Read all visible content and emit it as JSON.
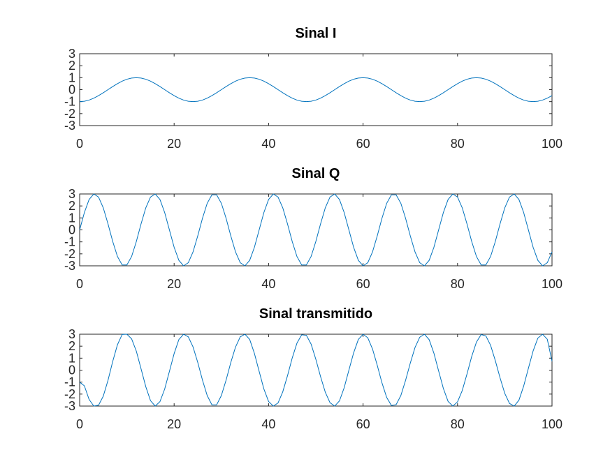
{
  "chart_data": [
    {
      "type": "line",
      "title": "Sinal I",
      "xlim": [
        0,
        100
      ],
      "ylim": [
        -3,
        3
      ],
      "xticks": [
        "0",
        "20",
        "40",
        "60",
        "80",
        "100"
      ],
      "yticks": [
        "3",
        "2",
        "1",
        "0",
        "-1",
        "-2",
        "-3"
      ],
      "x": [
        0,
        1,
        2,
        3,
        4,
        5,
        6,
        7,
        8,
        9,
        10,
        11,
        12,
        13,
        14,
        15,
        16,
        17,
        18,
        19,
        20,
        21,
        22,
        23,
        24,
        25,
        26,
        27,
        28,
        29,
        30,
        31,
        32,
        33,
        34,
        35,
        36,
        37,
        38,
        39,
        40,
        41,
        42,
        43,
        44,
        45,
        46,
        47,
        48,
        49,
        50,
        51,
        52,
        53,
        54,
        55,
        56,
        57,
        58,
        59,
        60,
        61,
        62,
        63,
        64,
        65,
        66,
        67,
        68,
        69,
        70,
        71,
        72,
        73,
        74,
        75,
        76,
        77,
        78,
        79,
        80,
        81,
        82,
        83,
        84,
        85,
        86,
        87,
        88,
        89,
        90,
        91,
        92,
        93,
        94,
        95,
        96,
        97,
        98,
        99,
        100
      ],
      "series": [
        {
          "values": [
            -1,
            -0.97,
            -0.87,
            -0.71,
            -0.5,
            -0.26,
            0,
            0.26,
            0.5,
            0.71,
            0.87,
            0.97,
            1,
            0.97,
            0.87,
            0.71,
            0.5,
            0.26,
            0,
            -0.26,
            -0.5,
            -0.71,
            -0.87,
            -0.97,
            -1,
            -0.97,
            -0.87,
            -0.71,
            -0.5,
            -0.26,
            0,
            0.26,
            0.5,
            0.71,
            0.87,
            0.97,
            1,
            0.97,
            0.87,
            0.71,
            0.5,
            0.26,
            0,
            -0.26,
            -0.5,
            -0.71,
            -0.87,
            -0.97,
            -1,
            -0.97,
            -0.87,
            -0.71,
            -0.5,
            -0.26,
            0,
            0.26,
            0.5,
            0.71,
            0.87,
            0.97,
            1,
            0.97,
            0.87,
            0.71,
            0.5,
            0.26,
            0,
            -0.26,
            -0.5,
            -0.71,
            -0.87,
            -0.97,
            -1,
            -0.97,
            -0.87,
            -0.71,
            -0.5,
            -0.26,
            0,
            0.26,
            0.5,
            0.71,
            0.87,
            0.97,
            1,
            0.97,
            0.87,
            0.71,
            0.5,
            0.26,
            0,
            -0.26,
            -0.5,
            -0.71,
            -0.87,
            -0.97,
            -1,
            -0.97,
            -0.87,
            -0.71,
            -0.5
          ],
          "color": "#0072bd"
        }
      ]
    },
    {
      "type": "line",
      "title": "Sinal Q",
      "xlim": [
        0,
        100
      ],
      "ylim": [
        -3,
        3
      ],
      "xticks": [
        "0",
        "20",
        "40",
        "60",
        "80",
        "100"
      ],
      "yticks": [
        "3",
        "2",
        "1",
        "0",
        "-1",
        "-2",
        "-3"
      ],
      "x": [
        0,
        1,
        2,
        3,
        4,
        5,
        6,
        7,
        8,
        9,
        10,
        11,
        12,
        13,
        14,
        15,
        16,
        17,
        18,
        19,
        20,
        21,
        22,
        23,
        24,
        25,
        26,
        27,
        28,
        29,
        30,
        31,
        32,
        33,
        34,
        35,
        36,
        37,
        38,
        39,
        40,
        41,
        42,
        43,
        44,
        45,
        46,
        47,
        48,
        49,
        50,
        51,
        52,
        53,
        54,
        55,
        56,
        57,
        58,
        59,
        60,
        61,
        62,
        63,
        64,
        65,
        66,
        67,
        68,
        69,
        70,
        71,
        72,
        73,
        74,
        75,
        76,
        77,
        78,
        79,
        80,
        81,
        82,
        83,
        84,
        85,
        86,
        87,
        88,
        89,
        90,
        91,
        92,
        93,
        94,
        95,
        96,
        97,
        98,
        99,
        100
      ],
      "series": [
        {
          "values": [
            0,
            1.45,
            2.54,
            3,
            2.74,
            1.84,
            0.5,
            -0.97,
            -2.22,
            -2.93,
            -2.93,
            -2.22,
            -0.97,
            0.5,
            1.84,
            2.74,
            3,
            2.54,
            1.45,
            0,
            -1.45,
            -2.54,
            -3,
            -2.74,
            -1.84,
            -0.5,
            0.97,
            2.22,
            2.93,
            2.93,
            2.22,
            0.97,
            -0.5,
            -1.84,
            -2.74,
            -3,
            -2.54,
            -1.45,
            0,
            1.45,
            2.54,
            3,
            2.74,
            1.84,
            0.5,
            -0.97,
            -2.22,
            -2.93,
            -2.93,
            -2.22,
            -0.97,
            0.5,
            1.84,
            2.74,
            3,
            2.54,
            1.45,
            0,
            -1.45,
            -2.54,
            -3,
            -2.74,
            -1.84,
            -0.5,
            0.97,
            2.22,
            2.93,
            2.93,
            2.22,
            0.97,
            -0.5,
            -1.84,
            -2.74,
            -3,
            -2.54,
            -1.45,
            0,
            1.45,
            2.54,
            3,
            2.74,
            1.84,
            0.5,
            -0.97,
            -2.22,
            -2.93,
            -2.93,
            -2.22,
            -0.97,
            0.5,
            1.84,
            2.74,
            3,
            2.54,
            1.45,
            0,
            -1.45,
            -2.54,
            -3,
            -2.74,
            -1.84
          ],
          "color": "#0072bd"
        }
      ]
    },
    {
      "type": "line",
      "title": "Sinal transmitido",
      "xlim": [
        0,
        100
      ],
      "ylim": [
        -3,
        3
      ],
      "xticks": [
        "0",
        "20",
        "40",
        "60",
        "80",
        "100"
      ],
      "yticks": [
        "3",
        "2",
        "1",
        "0",
        "-1",
        "-2",
        "-3"
      ],
      "x": [
        0,
        1,
        2,
        3,
        4,
        5,
        6,
        7,
        8,
        9,
        10,
        11,
        12,
        13,
        14,
        15,
        16,
        17,
        18,
        19,
        20,
        21,
        22,
        23,
        24,
        25,
        26,
        27,
        28,
        29,
        30,
        31,
        32,
        33,
        34,
        35,
        36,
        37,
        38,
        39,
        40,
        41,
        42,
        43,
        44,
        45,
        46,
        47,
        48,
        49,
        50,
        51,
        52,
        53,
        54,
        55,
        56,
        57,
        58,
        59,
        60,
        61,
        62,
        63,
        64,
        65,
        66,
        67,
        68,
        69,
        70,
        71,
        72,
        73,
        74,
        75,
        76,
        77,
        78,
        79,
        80,
        81,
        82,
        83,
        84,
        85,
        86,
        87,
        88,
        89,
        90,
        91,
        92,
        93,
        94,
        95,
        96,
        97,
        98,
        99,
        100
      ],
      "series": [
        {
          "values": [
            -1,
            -1.31,
            -2.45,
            -3,
            -2.93,
            -2.17,
            -0.85,
            0.73,
            2.12,
            2.98,
            3,
            2.61,
            1.58,
            0.11,
            -1.38,
            -2.55,
            -3,
            -2.63,
            -1.58,
            -0.11,
            1.38,
            2.55,
            3,
            2.78,
            1.94,
            0.65,
            -0.83,
            -2.12,
            -2.9,
            -2.9,
            -2.12,
            -0.84,
            0.64,
            1.93,
            2.78,
            3,
            2.56,
            1.39,
            -0.1,
            -1.57,
            -2.62,
            -3,
            -2.74,
            -1.81,
            -0.47,
            1.01,
            2.25,
            2.95,
            2.91,
            2.17,
            0.91,
            -0.54,
            -1.84,
            -2.72,
            -3,
            -2.57,
            -1.47,
            0,
            1.44,
            2.56,
            3,
            2.7,
            1.77,
            0.41,
            -1.06,
            -2.28,
            -2.95,
            -2.88,
            -2.12,
            -0.85,
            0.59,
            1.89,
            2.75,
            3,
            2.54,
            1.41,
            -0.07,
            -1.53,
            -2.61,
            -3,
            -2.65,
            -1.7,
            -0.33,
            1.14,
            2.34,
            2.97,
            2.86,
            2.07,
            0.79,
            -0.64,
            -1.94,
            -2.78,
            -3,
            -2.51,
            -1.33,
            0.15,
            1.6,
            2.67,
            3,
            2.58,
            0.74
          ]
        }
      ]
    }
  ],
  "style": {
    "line_color": "#0072bd",
    "axes_color": "#262626",
    "title_color": "#000000",
    "background": "#ffffff"
  }
}
